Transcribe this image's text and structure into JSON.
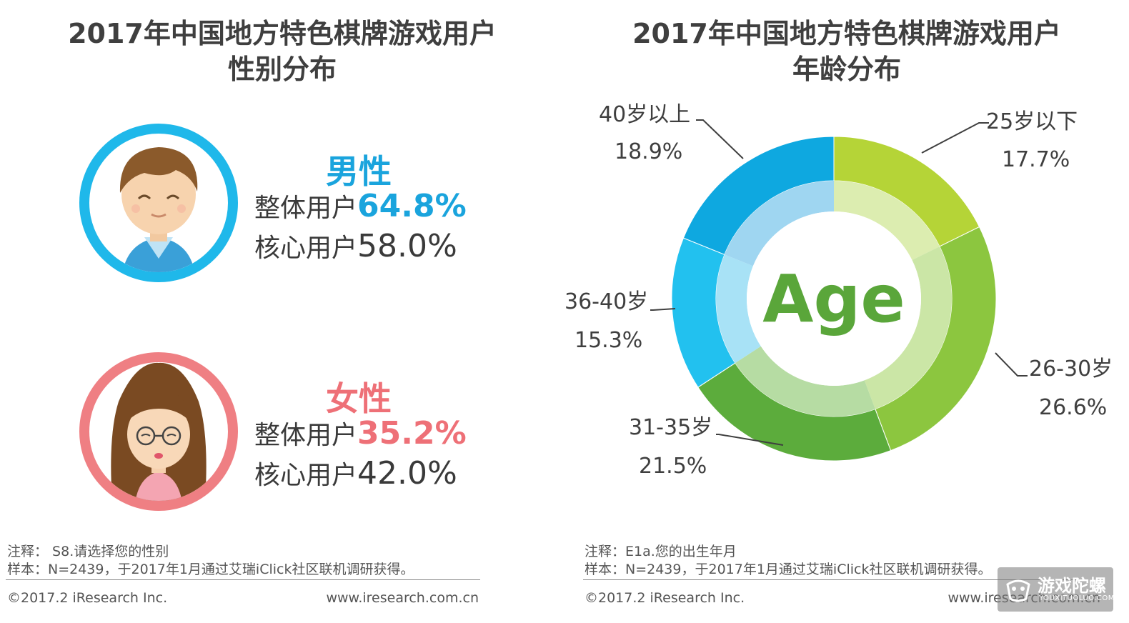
{
  "left": {
    "title_line1": "2017年中国地方特色棋牌游戏用户",
    "title_line2": "性别分布",
    "male": {
      "label": "男性",
      "overall_key": "整体用户",
      "overall_value": "64.8%",
      "core_key": "核心用户",
      "core_value": "58.0%",
      "color": "#1aa4dd"
    },
    "female": {
      "label": "女性",
      "overall_key": "整体用户",
      "overall_value": "35.2%",
      "core_key": "核心用户",
      "core_value": "42.0%",
      "color": "#ee7077"
    },
    "note1": "注释： S8.请选择您的性别",
    "note2": "样本：N=2439，于2017年1月通过艾瑞iClick社区联机调研获得。",
    "copyright": "©2017.2 iResearch Inc.",
    "website": "www.iresearch.com.cn"
  },
  "right": {
    "title_line1": "2017年中国地方特色棋牌游戏用户",
    "title_line2": "年龄分布",
    "center_text": "Age",
    "note1": "注释：E1a.您的出生年月",
    "note2": "样本：N=2439，于2017年1月通过艾瑞iClick社区联机调研获得。",
    "copyright": "©2017.2 iResearch Inc.",
    "website": "www.iresearch.com.cn"
  },
  "chart_data": [
    {
      "type": "table",
      "title": "2017年中国地方特色棋牌游戏用户性别分布",
      "columns": [
        "",
        "整体用户",
        "核心用户"
      ],
      "rows": [
        [
          "男性",
          64.8,
          58.0
        ],
        [
          "女性",
          35.2,
          42.0
        ]
      ]
    },
    {
      "type": "pie",
      "title": "2017年中国地方特色棋牌游戏用户年龄分布",
      "categories": [
        "25岁以下",
        "26-30岁",
        "31-35岁",
        "36-40岁",
        "40岁以上"
      ],
      "values": [
        17.7,
        26.6,
        21.5,
        15.3,
        18.9
      ],
      "value_labels": [
        "17.7%",
        "26.6%",
        "21.5%",
        "15.3%",
        "18.9%"
      ],
      "colors": [
        "#b5d437",
        "#8cc63f",
        "#5cac3c",
        "#22c1ef",
        "#0ea8e0"
      ],
      "inner_colors": [
        "#dcedb0",
        "#cbe6a6",
        "#b6dca3",
        "#a8e2f6",
        "#9fd6f1"
      ]
    }
  ],
  "watermark": {
    "main": "游戏陀螺",
    "sub": "YOUXITUOLUO.COM"
  }
}
